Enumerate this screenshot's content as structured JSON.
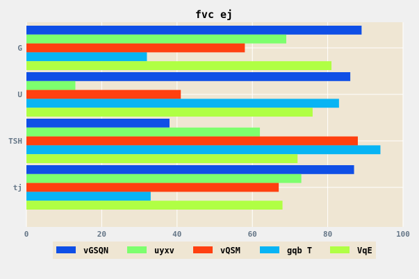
{
  "chart_data": {
    "type": "bar",
    "orientation": "horizontal",
    "title": "fvc ej",
    "xlabel": "",
    "ylabel": "",
    "categories": [
      "G",
      "U",
      "TSH",
      "tj"
    ],
    "xlim": [
      0,
      100
    ],
    "xticks": [
      0,
      20,
      40,
      60,
      80,
      100
    ],
    "grid": true,
    "legend_position": "bottom",
    "series": [
      {
        "name": "vGSQN",
        "color": "#0f4fe6",
        "values": [
          89,
          86,
          38,
          87
        ]
      },
      {
        "name": "uyxv",
        "color": "#7dff6e",
        "values": [
          69,
          13,
          62,
          73
        ]
      },
      {
        "name": "vQSM",
        "color": "#ff4010",
        "values": [
          58,
          41,
          88,
          67
        ]
      },
      {
        "name": "gqb T",
        "color": "#08b4f4",
        "values": [
          32,
          83,
          94,
          33
        ]
      },
      {
        "name": "VqE",
        "color": "#b0ff44",
        "values": [
          81,
          76,
          72,
          68
        ]
      }
    ]
  },
  "colors": {
    "page_background": "#f0f0f0",
    "plot_background": "#efe6d3",
    "grid": "#ffffff",
    "axis_text": "#667788",
    "title_text": "#000000"
  }
}
